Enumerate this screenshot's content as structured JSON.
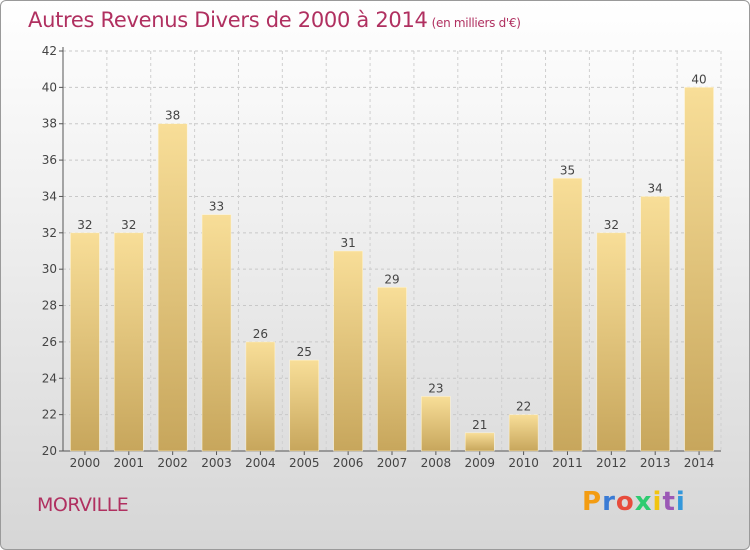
{
  "title": "Autres Revenus Divers de 2000 à 2014",
  "unit": "(en milliers d'€)",
  "town": "MORVILLE",
  "logo": {
    "text": "Proxiti",
    "colors": [
      "#f39c12",
      "#3a7bd5",
      "#e74c3c",
      "#2ecc71",
      "#f1c40f",
      "#9b59b6",
      "#3498db"
    ]
  },
  "chart_data": {
    "type": "bar",
    "title": "Autres Revenus Divers de 2000 à 2014",
    "xlabel": "",
    "ylabel": "",
    "categories": [
      "2000",
      "2001",
      "2002",
      "2003",
      "2004",
      "2005",
      "2006",
      "2007",
      "2008",
      "2009",
      "2010",
      "2011",
      "2012",
      "2013",
      "2014"
    ],
    "values": [
      32,
      32,
      38,
      33,
      26,
      25,
      31,
      29,
      23,
      21,
      22,
      35,
      32,
      34,
      40
    ],
    "ylim": [
      20,
      42
    ],
    "yticks": [
      20,
      22,
      24,
      26,
      28,
      30,
      32,
      34,
      36,
      38,
      40,
      42
    ],
    "grid": true,
    "bar_color": "#e8c878"
  }
}
